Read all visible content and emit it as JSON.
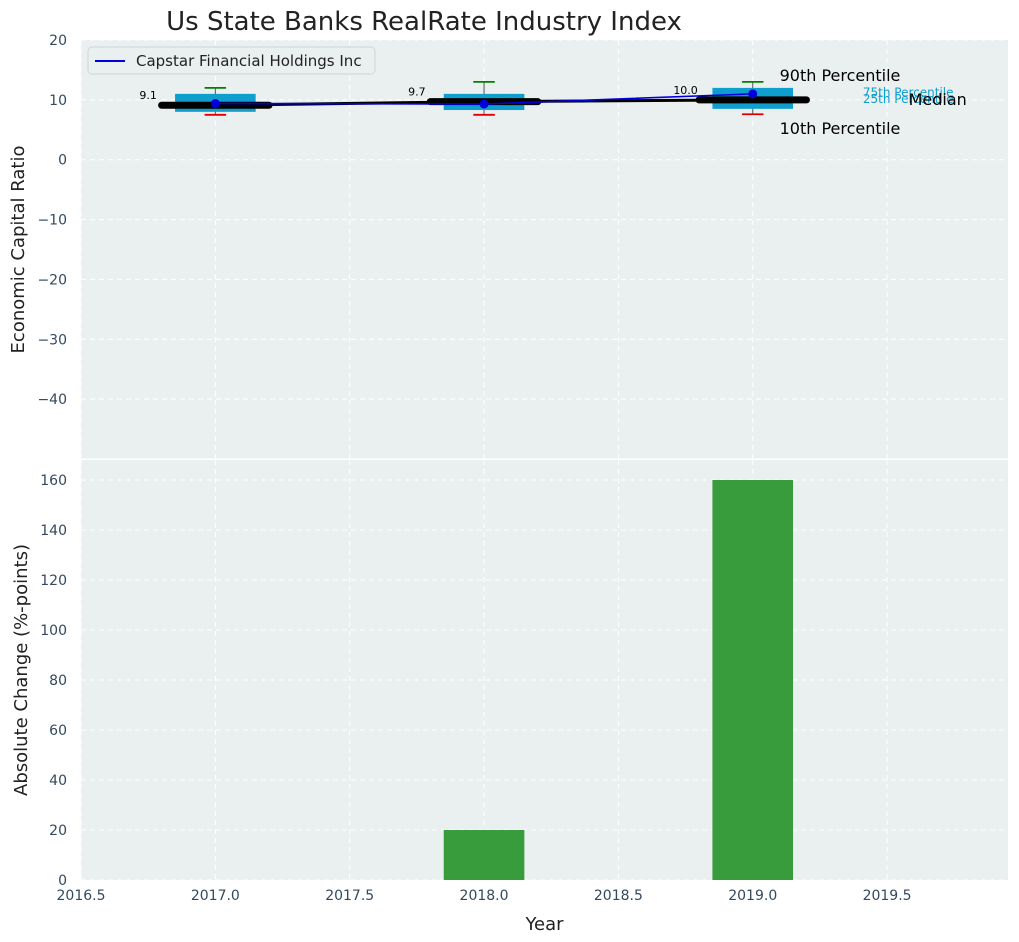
{
  "chart_data": {
    "title": "Us State Banks RealRate Industry Index",
    "top_panel": {
      "type": "box",
      "ylabel": "Economic Capital Ratio",
      "ylim": [
        -50,
        20
      ],
      "yticks": [
        20,
        10,
        0,
        -10,
        -20,
        -30,
        -40
      ],
      "legend": {
        "position": "top-left",
        "entries": [
          "Capstar Financial Holdings Inc"
        ]
      },
      "boxes": [
        {
          "year": 2017.0,
          "p10": 7.5,
          "p25": 8.0,
          "median": 9.1,
          "p75": 11.0,
          "p90": 12.0,
          "median_label": "9.1"
        },
        {
          "year": 2018.0,
          "p10": 7.5,
          "p25": 8.3,
          "median": 9.7,
          "p75": 11.0,
          "p90": 13.0,
          "median_label": "9.7"
        },
        {
          "year": 2019.0,
          "p10": 7.6,
          "p25": 8.5,
          "median": 10.0,
          "p75": 12.0,
          "p90": 13.0,
          "median_label": "10.0"
        }
      ],
      "company_series": {
        "name": "Capstar Financial Holdings Inc",
        "x": [
          2017.0,
          2018.0,
          2019.0
        ],
        "y": [
          9.4,
          9.3,
          11.0
        ],
        "color": "#0000dd"
      },
      "annotations": {
        "p90": "90th Percentile",
        "p75": "75th Percentile",
        "median": "Median",
        "p25": "25th Percentile",
        "p10": "10th Percentile"
      }
    },
    "bottom_panel": {
      "type": "bar",
      "ylabel": "Absolute Change (%-points)",
      "ylim": [
        0,
        168
      ],
      "yticks": [
        0,
        20,
        40,
        60,
        80,
        100,
        120,
        140,
        160
      ],
      "x": [
        2017.0,
        2018.0,
        2019.0
      ],
      "values": [
        0,
        20,
        160
      ],
      "color": "#2e9632"
    },
    "xaxis": {
      "label": "Year",
      "xlim": [
        2016.5,
        2019.95
      ],
      "ticks": [
        2016.5,
        2017.0,
        2017.5,
        2018.0,
        2018.5,
        2019.0,
        2019.5
      ],
      "tick_labels": [
        "2016.5",
        "2017.0",
        "2017.5",
        "2018.0",
        "2018.5",
        "2019.0",
        "2019.5"
      ]
    },
    "colors": {
      "background": "#eaeff0",
      "grid": "#ffffff",
      "box": "#0e9fcf",
      "median_bar": "#000000",
      "whisker_high": "#008000",
      "whisker_low": "#e00000",
      "company_line": "#0000dd",
      "bar": "#2e9632"
    }
  }
}
